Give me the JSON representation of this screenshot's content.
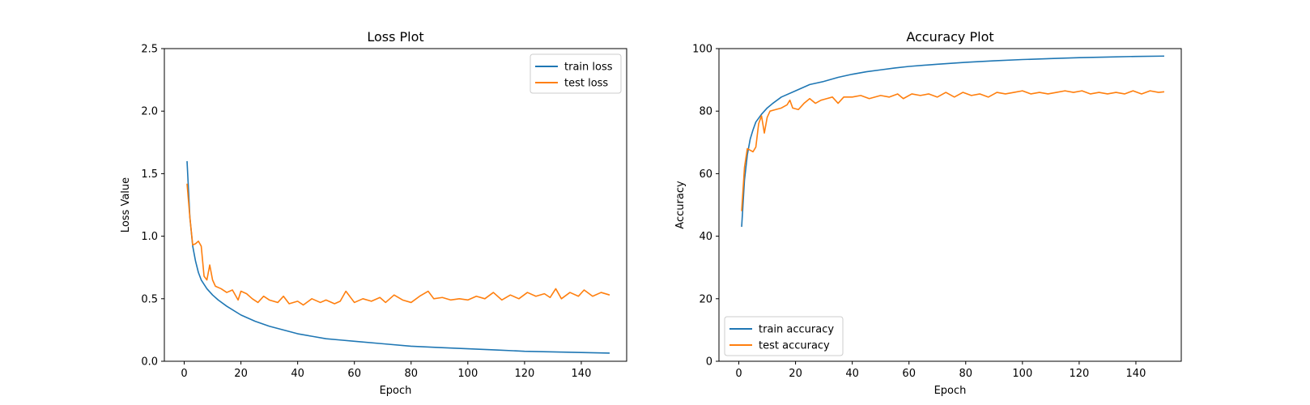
{
  "colors": {
    "train": "#1f77b4",
    "test": "#ff7f0e"
  },
  "chart_data": [
    {
      "type": "line",
      "title": "Loss Plot",
      "xlabel": "Epoch",
      "ylabel": "Loss Value",
      "xlim": [
        -7,
        156
      ],
      "ylim": [
        0,
        2.5
      ],
      "xticks": [
        0,
        20,
        40,
        60,
        80,
        100,
        120,
        140
      ],
      "yticks": [
        "0.0",
        "0.5",
        "1.0",
        "1.5",
        "2.0",
        "2.5"
      ],
      "legend_position": "top-right",
      "series": [
        {
          "name": "train loss",
          "color": "#1f77b4",
          "points": [
            [
              1,
              1.6
            ],
            [
              2,
              1.15
            ],
            [
              3,
              0.92
            ],
            [
              4,
              0.8
            ],
            [
              5,
              0.71
            ],
            [
              6,
              0.65
            ],
            [
              8,
              0.58
            ],
            [
              10,
              0.53
            ],
            [
              12,
              0.49
            ],
            [
              15,
              0.44
            ],
            [
              20,
              0.37
            ],
            [
              25,
              0.32
            ],
            [
              30,
              0.28
            ],
            [
              35,
              0.25
            ],
            [
              40,
              0.22
            ],
            [
              45,
              0.2
            ],
            [
              50,
              0.18
            ],
            [
              55,
              0.17
            ],
            [
              60,
              0.16
            ],
            [
              70,
              0.14
            ],
            [
              80,
              0.12
            ],
            [
              90,
              0.11
            ],
            [
              100,
              0.1
            ],
            [
              110,
              0.09
            ],
            [
              120,
              0.08
            ],
            [
              130,
              0.075
            ],
            [
              140,
              0.07
            ],
            [
              150,
              0.065
            ]
          ]
        },
        {
          "name": "test loss",
          "color": "#ff7f0e",
          "points": [
            [
              1,
              1.42
            ],
            [
              2,
              1.15
            ],
            [
              3,
              0.93
            ],
            [
              4,
              0.94
            ],
            [
              5,
              0.96
            ],
            [
              6,
              0.92
            ],
            [
              7,
              0.68
            ],
            [
              8,
              0.65
            ],
            [
              9,
              0.77
            ],
            [
              10,
              0.65
            ],
            [
              11,
              0.6
            ],
            [
              13,
              0.58
            ],
            [
              15,
              0.55
            ],
            [
              17,
              0.57
            ],
            [
              19,
              0.49
            ],
            [
              20,
              0.56
            ],
            [
              22,
              0.54
            ],
            [
              24,
              0.5
            ],
            [
              26,
              0.47
            ],
            [
              28,
              0.52
            ],
            [
              30,
              0.49
            ],
            [
              33,
              0.47
            ],
            [
              35,
              0.52
            ],
            [
              37,
              0.46
            ],
            [
              40,
              0.48
            ],
            [
              42,
              0.45
            ],
            [
              45,
              0.5
            ],
            [
              48,
              0.47
            ],
            [
              50,
              0.49
            ],
            [
              53,
              0.46
            ],
            [
              55,
              0.48
            ],
            [
              57,
              0.56
            ],
            [
              60,
              0.47
            ],
            [
              63,
              0.5
            ],
            [
              66,
              0.48
            ],
            [
              69,
              0.51
            ],
            [
              71,
              0.47
            ],
            [
              74,
              0.53
            ],
            [
              77,
              0.49
            ],
            [
              80,
              0.47
            ],
            [
              83,
              0.52
            ],
            [
              86,
              0.56
            ],
            [
              88,
              0.5
            ],
            [
              91,
              0.51
            ],
            [
              94,
              0.49
            ],
            [
              97,
              0.5
            ],
            [
              100,
              0.49
            ],
            [
              103,
              0.52
            ],
            [
              106,
              0.5
            ],
            [
              109,
              0.55
            ],
            [
              112,
              0.49
            ],
            [
              115,
              0.53
            ],
            [
              118,
              0.5
            ],
            [
              121,
              0.55
            ],
            [
              124,
              0.52
            ],
            [
              127,
              0.54
            ],
            [
              129,
              0.51
            ],
            [
              131,
              0.58
            ],
            [
              133,
              0.5
            ],
            [
              136,
              0.55
            ],
            [
              139,
              0.52
            ],
            [
              141,
              0.57
            ],
            [
              144,
              0.52
            ],
            [
              147,
              0.55
            ],
            [
              150,
              0.53
            ]
          ]
        }
      ]
    },
    {
      "type": "line",
      "title": "Accuracy Plot",
      "xlabel": "Epoch",
      "ylabel": "Accuracy",
      "xlim": [
        -7,
        156
      ],
      "ylim": [
        0,
        100
      ],
      "xticks": [
        0,
        20,
        40,
        60,
        80,
        100,
        120,
        140
      ],
      "yticks": [
        "0",
        "20",
        "40",
        "60",
        "80",
        "100"
      ],
      "legend_position": "bottom-left",
      "series": [
        {
          "name": "train accuracy",
          "color": "#1f77b4",
          "points": [
            [
              1,
              43
            ],
            [
              2,
              58
            ],
            [
              3,
              66
            ],
            [
              4,
              71
            ],
            [
              5,
              74
            ],
            [
              6,
              76.5
            ],
            [
              8,
              79
            ],
            [
              10,
              81
            ],
            [
              12,
              82.5
            ],
            [
              15,
              84.5
            ],
            [
              20,
              86.5
            ],
            [
              25,
              88.5
            ],
            [
              30,
              89.5
            ],
            [
              35,
              90.8
            ],
            [
              40,
              91.8
            ],
            [
              45,
              92.6
            ],
            [
              50,
              93.2
            ],
            [
              55,
              93.8
            ],
            [
              60,
              94.3
            ],
            [
              70,
              95
            ],
            [
              80,
              95.6
            ],
            [
              90,
              96.1
            ],
            [
              100,
              96.5
            ],
            [
              110,
              96.8
            ],
            [
              120,
              97.1
            ],
            [
              130,
              97.3
            ],
            [
              140,
              97.5
            ],
            [
              150,
              97.6
            ]
          ]
        },
        {
          "name": "test accuracy",
          "color": "#ff7f0e",
          "points": [
            [
              1,
              48
            ],
            [
              2,
              62
            ],
            [
              3,
              68
            ],
            [
              4,
              67.5
            ],
            [
              5,
              67
            ],
            [
              6,
              68.5
            ],
            [
              7,
              76
            ],
            [
              8,
              78.5
            ],
            [
              9,
              73
            ],
            [
              10,
              78
            ],
            [
              11,
              80
            ],
            [
              13,
              80.5
            ],
            [
              15,
              81
            ],
            [
              17,
              82
            ],
            [
              18,
              83.5
            ],
            [
              19,
              81
            ],
            [
              21,
              80.5
            ],
            [
              23,
              82.5
            ],
            [
              25,
              84
            ],
            [
              27,
              82.5
            ],
            [
              29,
              83.5
            ],
            [
              31,
              84
            ],
            [
              33,
              84.5
            ],
            [
              35,
              82.5
            ],
            [
              37,
              84.5
            ],
            [
              40,
              84.5
            ],
            [
              43,
              85
            ],
            [
              46,
              84
            ],
            [
              50,
              85
            ],
            [
              53,
              84.5
            ],
            [
              56,
              85.5
            ],
            [
              58,
              84
            ],
            [
              61,
              85.5
            ],
            [
              64,
              85
            ],
            [
              67,
              85.5
            ],
            [
              70,
              84.5
            ],
            [
              73,
              86
            ],
            [
              76,
              84.5
            ],
            [
              79,
              86
            ],
            [
              82,
              85
            ],
            [
              85,
              85.5
            ],
            [
              88,
              84.5
            ],
            [
              91,
              86
            ],
            [
              94,
              85.5
            ],
            [
              97,
              86
            ],
            [
              100,
              86.5
            ],
            [
              103,
              85.5
            ],
            [
              106,
              86
            ],
            [
              109,
              85.5
            ],
            [
              112,
              86
            ],
            [
              115,
              86.5
            ],
            [
              118,
              86
            ],
            [
              121,
              86.5
            ],
            [
              124,
              85.5
            ],
            [
              127,
              86
            ],
            [
              130,
              85.5
            ],
            [
              133,
              86
            ],
            [
              136,
              85.5
            ],
            [
              139,
              86.5
            ],
            [
              142,
              85.5
            ],
            [
              145,
              86.5
            ],
            [
              148,
              86
            ],
            [
              150,
              86.2
            ]
          ]
        }
      ]
    }
  ]
}
